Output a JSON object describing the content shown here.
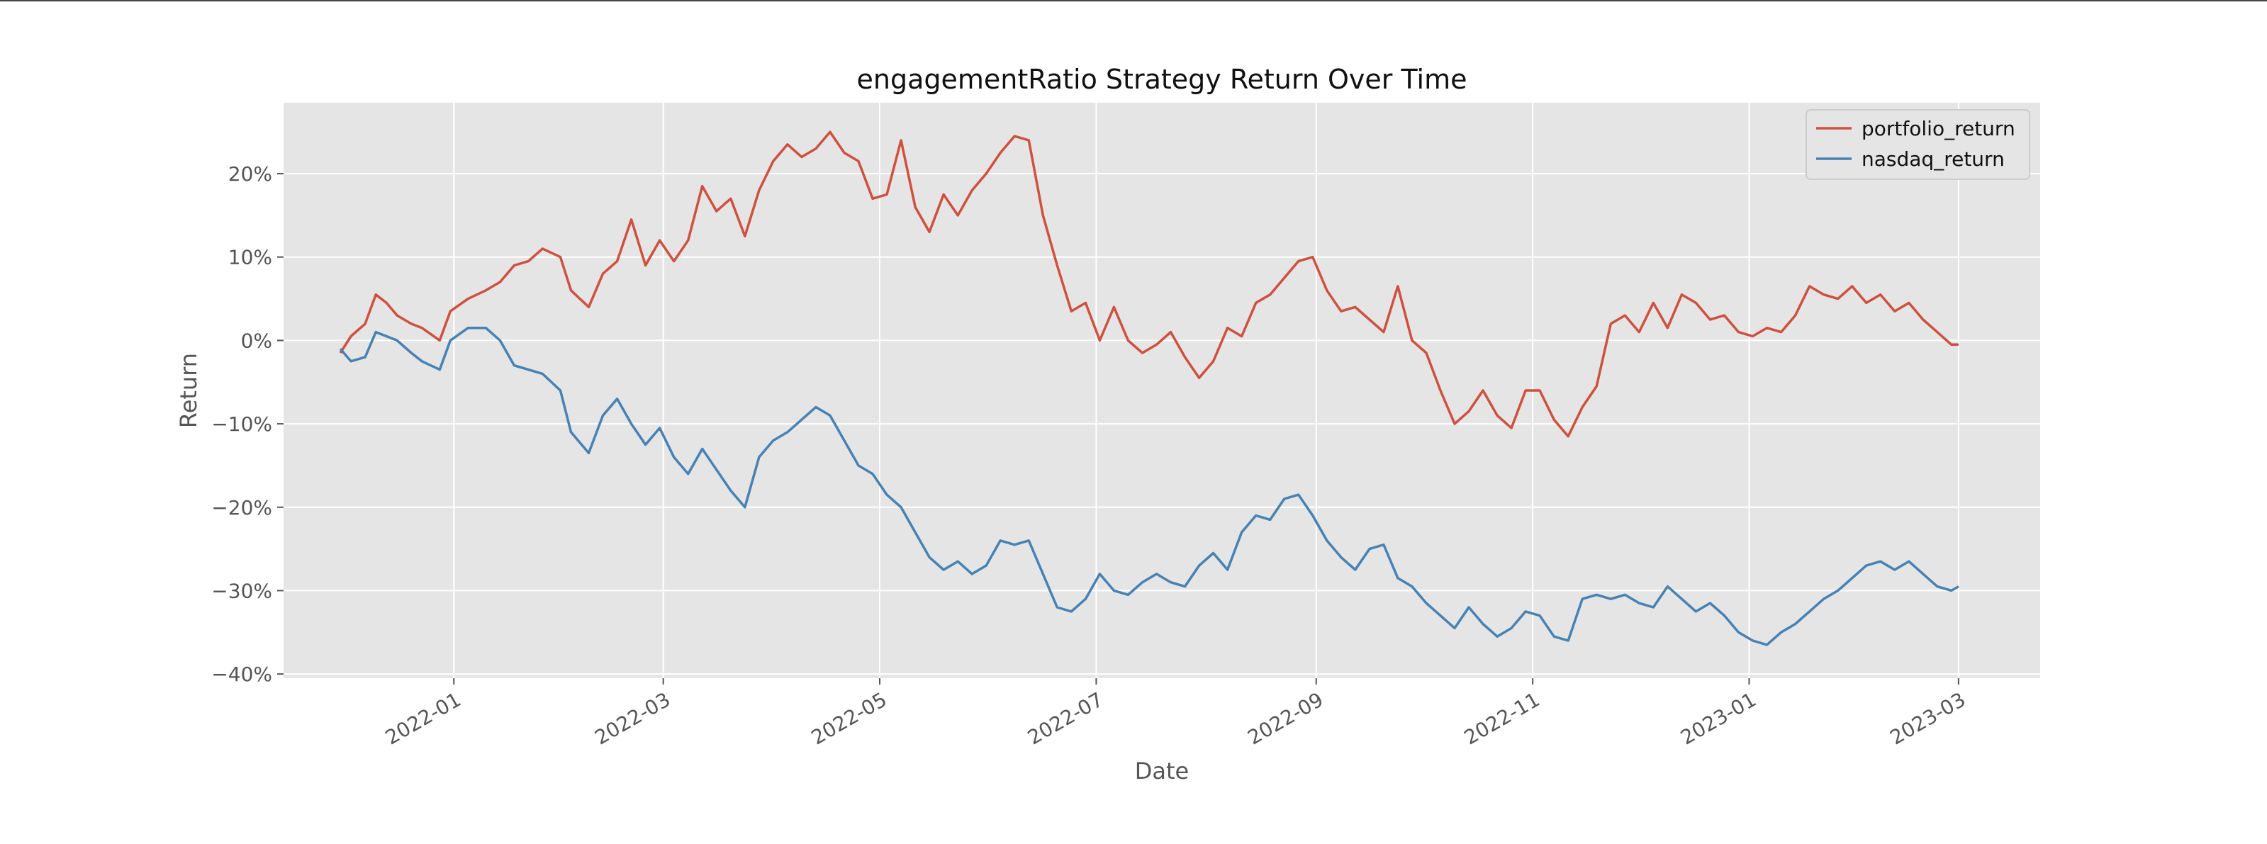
{
  "chart_data": {
    "type": "line",
    "title": "engagementRatio Strategy Return Over Time",
    "xlabel": "Date",
    "ylabel": "Return",
    "x_range": [
      "2021-11-14",
      "2023-03-24"
    ],
    "ylim": [
      -40.5,
      28.5
    ],
    "x_ticks": [
      "2022-01",
      "2022-03",
      "2022-05",
      "2022-07",
      "2022-09",
      "2022-11",
      "2023-01",
      "2023-03"
    ],
    "y_ticks": [
      -40,
      -30,
      -20,
      -10,
      0,
      10,
      20
    ],
    "y_tick_labels": [
      "−40%",
      "−30%",
      "−20%",
      "−10%",
      "0%",
      "10%",
      "20%"
    ],
    "grid": true,
    "legend_position": "top-right",
    "colors": {
      "background": "#e5e5e5",
      "grid": "#ffffff",
      "portfolio_return": "#d0503e",
      "nasdaq_return": "#4682b4"
    },
    "series": [
      {
        "name": "portfolio_return",
        "points": [
          [
            "2021-11-30",
            -1.5
          ],
          [
            "2021-12-03",
            0.5
          ],
          [
            "2021-12-07",
            2.0
          ],
          [
            "2021-12-10",
            5.5
          ],
          [
            "2021-12-13",
            4.5
          ],
          [
            "2021-12-16",
            3.0
          ],
          [
            "2021-12-20",
            2.0
          ],
          [
            "2021-12-23",
            1.5
          ],
          [
            "2021-12-28",
            0.0
          ],
          [
            "2021-12-31",
            3.5
          ],
          [
            "2022-01-05",
            5.0
          ],
          [
            "2022-01-10",
            6.0
          ],
          [
            "2022-01-14",
            7.0
          ],
          [
            "2022-01-18",
            9.0
          ],
          [
            "2022-01-22",
            9.5
          ],
          [
            "2022-01-26",
            11.0
          ],
          [
            "2022-01-31",
            10.0
          ],
          [
            "2022-02-03",
            6.0
          ],
          [
            "2022-02-08",
            4.0
          ],
          [
            "2022-02-12",
            8.0
          ],
          [
            "2022-02-16",
            9.5
          ],
          [
            "2022-02-20",
            14.5
          ],
          [
            "2022-02-24",
            9.0
          ],
          [
            "2022-02-28",
            12.0
          ],
          [
            "2022-03-04",
            9.5
          ],
          [
            "2022-03-08",
            12.0
          ],
          [
            "2022-03-12",
            18.5
          ],
          [
            "2022-03-16",
            15.5
          ],
          [
            "2022-03-20",
            17.0
          ],
          [
            "2022-03-24",
            12.5
          ],
          [
            "2022-03-28",
            18.0
          ],
          [
            "2022-04-01",
            21.5
          ],
          [
            "2022-04-05",
            23.5
          ],
          [
            "2022-04-09",
            22.0
          ],
          [
            "2022-04-13",
            23.0
          ],
          [
            "2022-04-17",
            25.0
          ],
          [
            "2022-04-21",
            22.5
          ],
          [
            "2022-04-25",
            21.5
          ],
          [
            "2022-04-29",
            17.0
          ],
          [
            "2022-05-03",
            17.5
          ],
          [
            "2022-05-07",
            24.0
          ],
          [
            "2022-05-11",
            16.0
          ],
          [
            "2022-05-15",
            13.0
          ],
          [
            "2022-05-19",
            17.5
          ],
          [
            "2022-05-23",
            15.0
          ],
          [
            "2022-05-27",
            18.0
          ],
          [
            "2022-05-31",
            20.0
          ],
          [
            "2022-06-04",
            22.5
          ],
          [
            "2022-06-08",
            24.5
          ],
          [
            "2022-06-12",
            24.0
          ],
          [
            "2022-06-16",
            15.0
          ],
          [
            "2022-06-20",
            9.0
          ],
          [
            "2022-06-24",
            3.5
          ],
          [
            "2022-06-28",
            4.5
          ],
          [
            "2022-07-02",
            0.0
          ],
          [
            "2022-07-06",
            4.0
          ],
          [
            "2022-07-10",
            0.0
          ],
          [
            "2022-07-14",
            -1.5
          ],
          [
            "2022-07-18",
            -0.5
          ],
          [
            "2022-07-22",
            1.0
          ],
          [
            "2022-07-26",
            -2.0
          ],
          [
            "2022-07-30",
            -4.5
          ],
          [
            "2022-08-03",
            -2.5
          ],
          [
            "2022-08-07",
            1.5
          ],
          [
            "2022-08-11",
            0.5
          ],
          [
            "2022-08-15",
            4.5
          ],
          [
            "2022-08-19",
            5.5
          ],
          [
            "2022-08-23",
            7.5
          ],
          [
            "2022-08-27",
            9.5
          ],
          [
            "2022-08-31",
            10.0
          ],
          [
            "2022-09-04",
            6.0
          ],
          [
            "2022-09-08",
            3.5
          ],
          [
            "2022-09-12",
            4.0
          ],
          [
            "2022-09-16",
            2.5
          ],
          [
            "2022-09-20",
            1.0
          ],
          [
            "2022-09-24",
            6.5
          ],
          [
            "2022-09-28",
            0.0
          ],
          [
            "2022-10-02",
            -1.5
          ],
          [
            "2022-10-06",
            -6.0
          ],
          [
            "2022-10-10",
            -10.0
          ],
          [
            "2022-10-14",
            -8.5
          ],
          [
            "2022-10-18",
            -6.0
          ],
          [
            "2022-10-22",
            -9.0
          ],
          [
            "2022-10-26",
            -10.5
          ],
          [
            "2022-10-30",
            -6.0
          ],
          [
            "2022-11-03",
            -6.0
          ],
          [
            "2022-11-07",
            -9.5
          ],
          [
            "2022-11-11",
            -11.5
          ],
          [
            "2022-11-15",
            -8.0
          ],
          [
            "2022-11-19",
            -5.5
          ],
          [
            "2022-11-23",
            2.0
          ],
          [
            "2022-11-27",
            3.0
          ],
          [
            "2022-12-01",
            1.0
          ],
          [
            "2022-12-05",
            4.5
          ],
          [
            "2022-12-09",
            1.5
          ],
          [
            "2022-12-13",
            5.5
          ],
          [
            "2022-12-17",
            4.5
          ],
          [
            "2022-12-21",
            2.5
          ],
          [
            "2022-12-25",
            3.0
          ],
          [
            "2022-12-29",
            1.0
          ],
          [
            "2023-01-02",
            0.5
          ],
          [
            "2023-01-06",
            1.5
          ],
          [
            "2023-01-10",
            1.0
          ],
          [
            "2023-01-14",
            3.0
          ],
          [
            "2023-01-18",
            6.5
          ],
          [
            "2023-01-22",
            5.5
          ],
          [
            "2023-01-26",
            5.0
          ],
          [
            "2023-01-30",
            6.5
          ],
          [
            "2023-02-03",
            4.5
          ],
          [
            "2023-02-07",
            5.5
          ],
          [
            "2023-02-11",
            3.5
          ],
          [
            "2023-02-15",
            4.5
          ],
          [
            "2023-02-19",
            2.5
          ],
          [
            "2023-02-23",
            1.0
          ],
          [
            "2023-02-27",
            -0.5
          ],
          [
            "2023-03-01",
            -0.5
          ]
        ]
      },
      {
        "name": "nasdaq_return",
        "points": [
          [
            "2021-11-30",
            -1.0
          ],
          [
            "2021-12-03",
            -2.5
          ],
          [
            "2021-12-07",
            -2.0
          ],
          [
            "2021-12-10",
            1.0
          ],
          [
            "2021-12-13",
            0.5
          ],
          [
            "2021-12-16",
            0.0
          ],
          [
            "2021-12-20",
            -1.5
          ],
          [
            "2021-12-23",
            -2.5
          ],
          [
            "2021-12-28",
            -3.5
          ],
          [
            "2021-12-31",
            0.0
          ],
          [
            "2022-01-05",
            1.5
          ],
          [
            "2022-01-10",
            1.5
          ],
          [
            "2022-01-14",
            0.0
          ],
          [
            "2022-01-18",
            -3.0
          ],
          [
            "2022-01-22",
            -3.5
          ],
          [
            "2022-01-26",
            -4.0
          ],
          [
            "2022-01-31",
            -6.0
          ],
          [
            "2022-02-03",
            -11.0
          ],
          [
            "2022-02-08",
            -13.5
          ],
          [
            "2022-02-12",
            -9.0
          ],
          [
            "2022-02-16",
            -7.0
          ],
          [
            "2022-02-20",
            -10.0
          ],
          [
            "2022-02-24",
            -12.5
          ],
          [
            "2022-02-28",
            -10.5
          ],
          [
            "2022-03-04",
            -14.0
          ],
          [
            "2022-03-08",
            -16.0
          ],
          [
            "2022-03-12",
            -13.0
          ],
          [
            "2022-03-16",
            -15.5
          ],
          [
            "2022-03-20",
            -18.0
          ],
          [
            "2022-03-24",
            -20.0
          ],
          [
            "2022-03-28",
            -14.0
          ],
          [
            "2022-04-01",
            -12.0
          ],
          [
            "2022-04-05",
            -11.0
          ],
          [
            "2022-04-09",
            -9.5
          ],
          [
            "2022-04-13",
            -8.0
          ],
          [
            "2022-04-17",
            -9.0
          ],
          [
            "2022-04-21",
            -12.0
          ],
          [
            "2022-04-25",
            -15.0
          ],
          [
            "2022-04-29",
            -16.0
          ],
          [
            "2022-05-03",
            -18.5
          ],
          [
            "2022-05-07",
            -20.0
          ],
          [
            "2022-05-11",
            -23.0
          ],
          [
            "2022-05-15",
            -26.0
          ],
          [
            "2022-05-19",
            -27.5
          ],
          [
            "2022-05-23",
            -26.5
          ],
          [
            "2022-05-27",
            -28.0
          ],
          [
            "2022-05-31",
            -27.0
          ],
          [
            "2022-06-04",
            -24.0
          ],
          [
            "2022-06-08",
            -24.5
          ],
          [
            "2022-06-12",
            -24.0
          ],
          [
            "2022-06-16",
            -28.0
          ],
          [
            "2022-06-20",
            -32.0
          ],
          [
            "2022-06-24",
            -32.5
          ],
          [
            "2022-06-28",
            -31.0
          ],
          [
            "2022-07-02",
            -28.0
          ],
          [
            "2022-07-06",
            -30.0
          ],
          [
            "2022-07-10",
            -30.5
          ],
          [
            "2022-07-14",
            -29.0
          ],
          [
            "2022-07-18",
            -28.0
          ],
          [
            "2022-07-22",
            -29.0
          ],
          [
            "2022-07-26",
            -29.5
          ],
          [
            "2022-07-30",
            -27.0
          ],
          [
            "2022-08-03",
            -25.5
          ],
          [
            "2022-08-07",
            -27.5
          ],
          [
            "2022-08-11",
            -23.0
          ],
          [
            "2022-08-15",
            -21.0
          ],
          [
            "2022-08-19",
            -21.5
          ],
          [
            "2022-08-23",
            -19.0
          ],
          [
            "2022-08-27",
            -18.5
          ],
          [
            "2022-08-31",
            -21.0
          ],
          [
            "2022-09-04",
            -24.0
          ],
          [
            "2022-09-08",
            -26.0
          ],
          [
            "2022-09-12",
            -27.5
          ],
          [
            "2022-09-16",
            -25.0
          ],
          [
            "2022-09-20",
            -24.5
          ],
          [
            "2022-09-24",
            -28.5
          ],
          [
            "2022-09-28",
            -29.5
          ],
          [
            "2022-10-02",
            -31.5
          ],
          [
            "2022-10-06",
            -33.0
          ],
          [
            "2022-10-10",
            -34.5
          ],
          [
            "2022-10-14",
            -32.0
          ],
          [
            "2022-10-18",
            -34.0
          ],
          [
            "2022-10-22",
            -35.5
          ],
          [
            "2022-10-26",
            -34.5
          ],
          [
            "2022-10-30",
            -32.5
          ],
          [
            "2022-11-03",
            -33.0
          ],
          [
            "2022-11-07",
            -35.5
          ],
          [
            "2022-11-11",
            -36.0
          ],
          [
            "2022-11-15",
            -31.0
          ],
          [
            "2022-11-19",
            -30.5
          ],
          [
            "2022-11-23",
            -31.0
          ],
          [
            "2022-11-27",
            -30.5
          ],
          [
            "2022-12-01",
            -31.5
          ],
          [
            "2022-12-05",
            -32.0
          ],
          [
            "2022-12-09",
            -29.5
          ],
          [
            "2022-12-13",
            -31.0
          ],
          [
            "2022-12-17",
            -32.5
          ],
          [
            "2022-12-21",
            -31.5
          ],
          [
            "2022-12-25",
            -33.0
          ],
          [
            "2022-12-29",
            -35.0
          ],
          [
            "2023-01-02",
            -36.0
          ],
          [
            "2023-01-06",
            -36.5
          ],
          [
            "2023-01-10",
            -35.0
          ],
          [
            "2023-01-14",
            -34.0
          ],
          [
            "2023-01-18",
            -32.5
          ],
          [
            "2023-01-22",
            -31.0
          ],
          [
            "2023-01-26",
            -30.0
          ],
          [
            "2023-01-30",
            -28.5
          ],
          [
            "2023-02-03",
            -27.0
          ],
          [
            "2023-02-07",
            -26.5
          ],
          [
            "2023-02-11",
            -27.5
          ],
          [
            "2023-02-15",
            -26.5
          ],
          [
            "2023-02-19",
            -28.0
          ],
          [
            "2023-02-23",
            -29.5
          ],
          [
            "2023-02-27",
            -30.0
          ],
          [
            "2023-03-01",
            -29.5
          ]
        ]
      }
    ]
  }
}
